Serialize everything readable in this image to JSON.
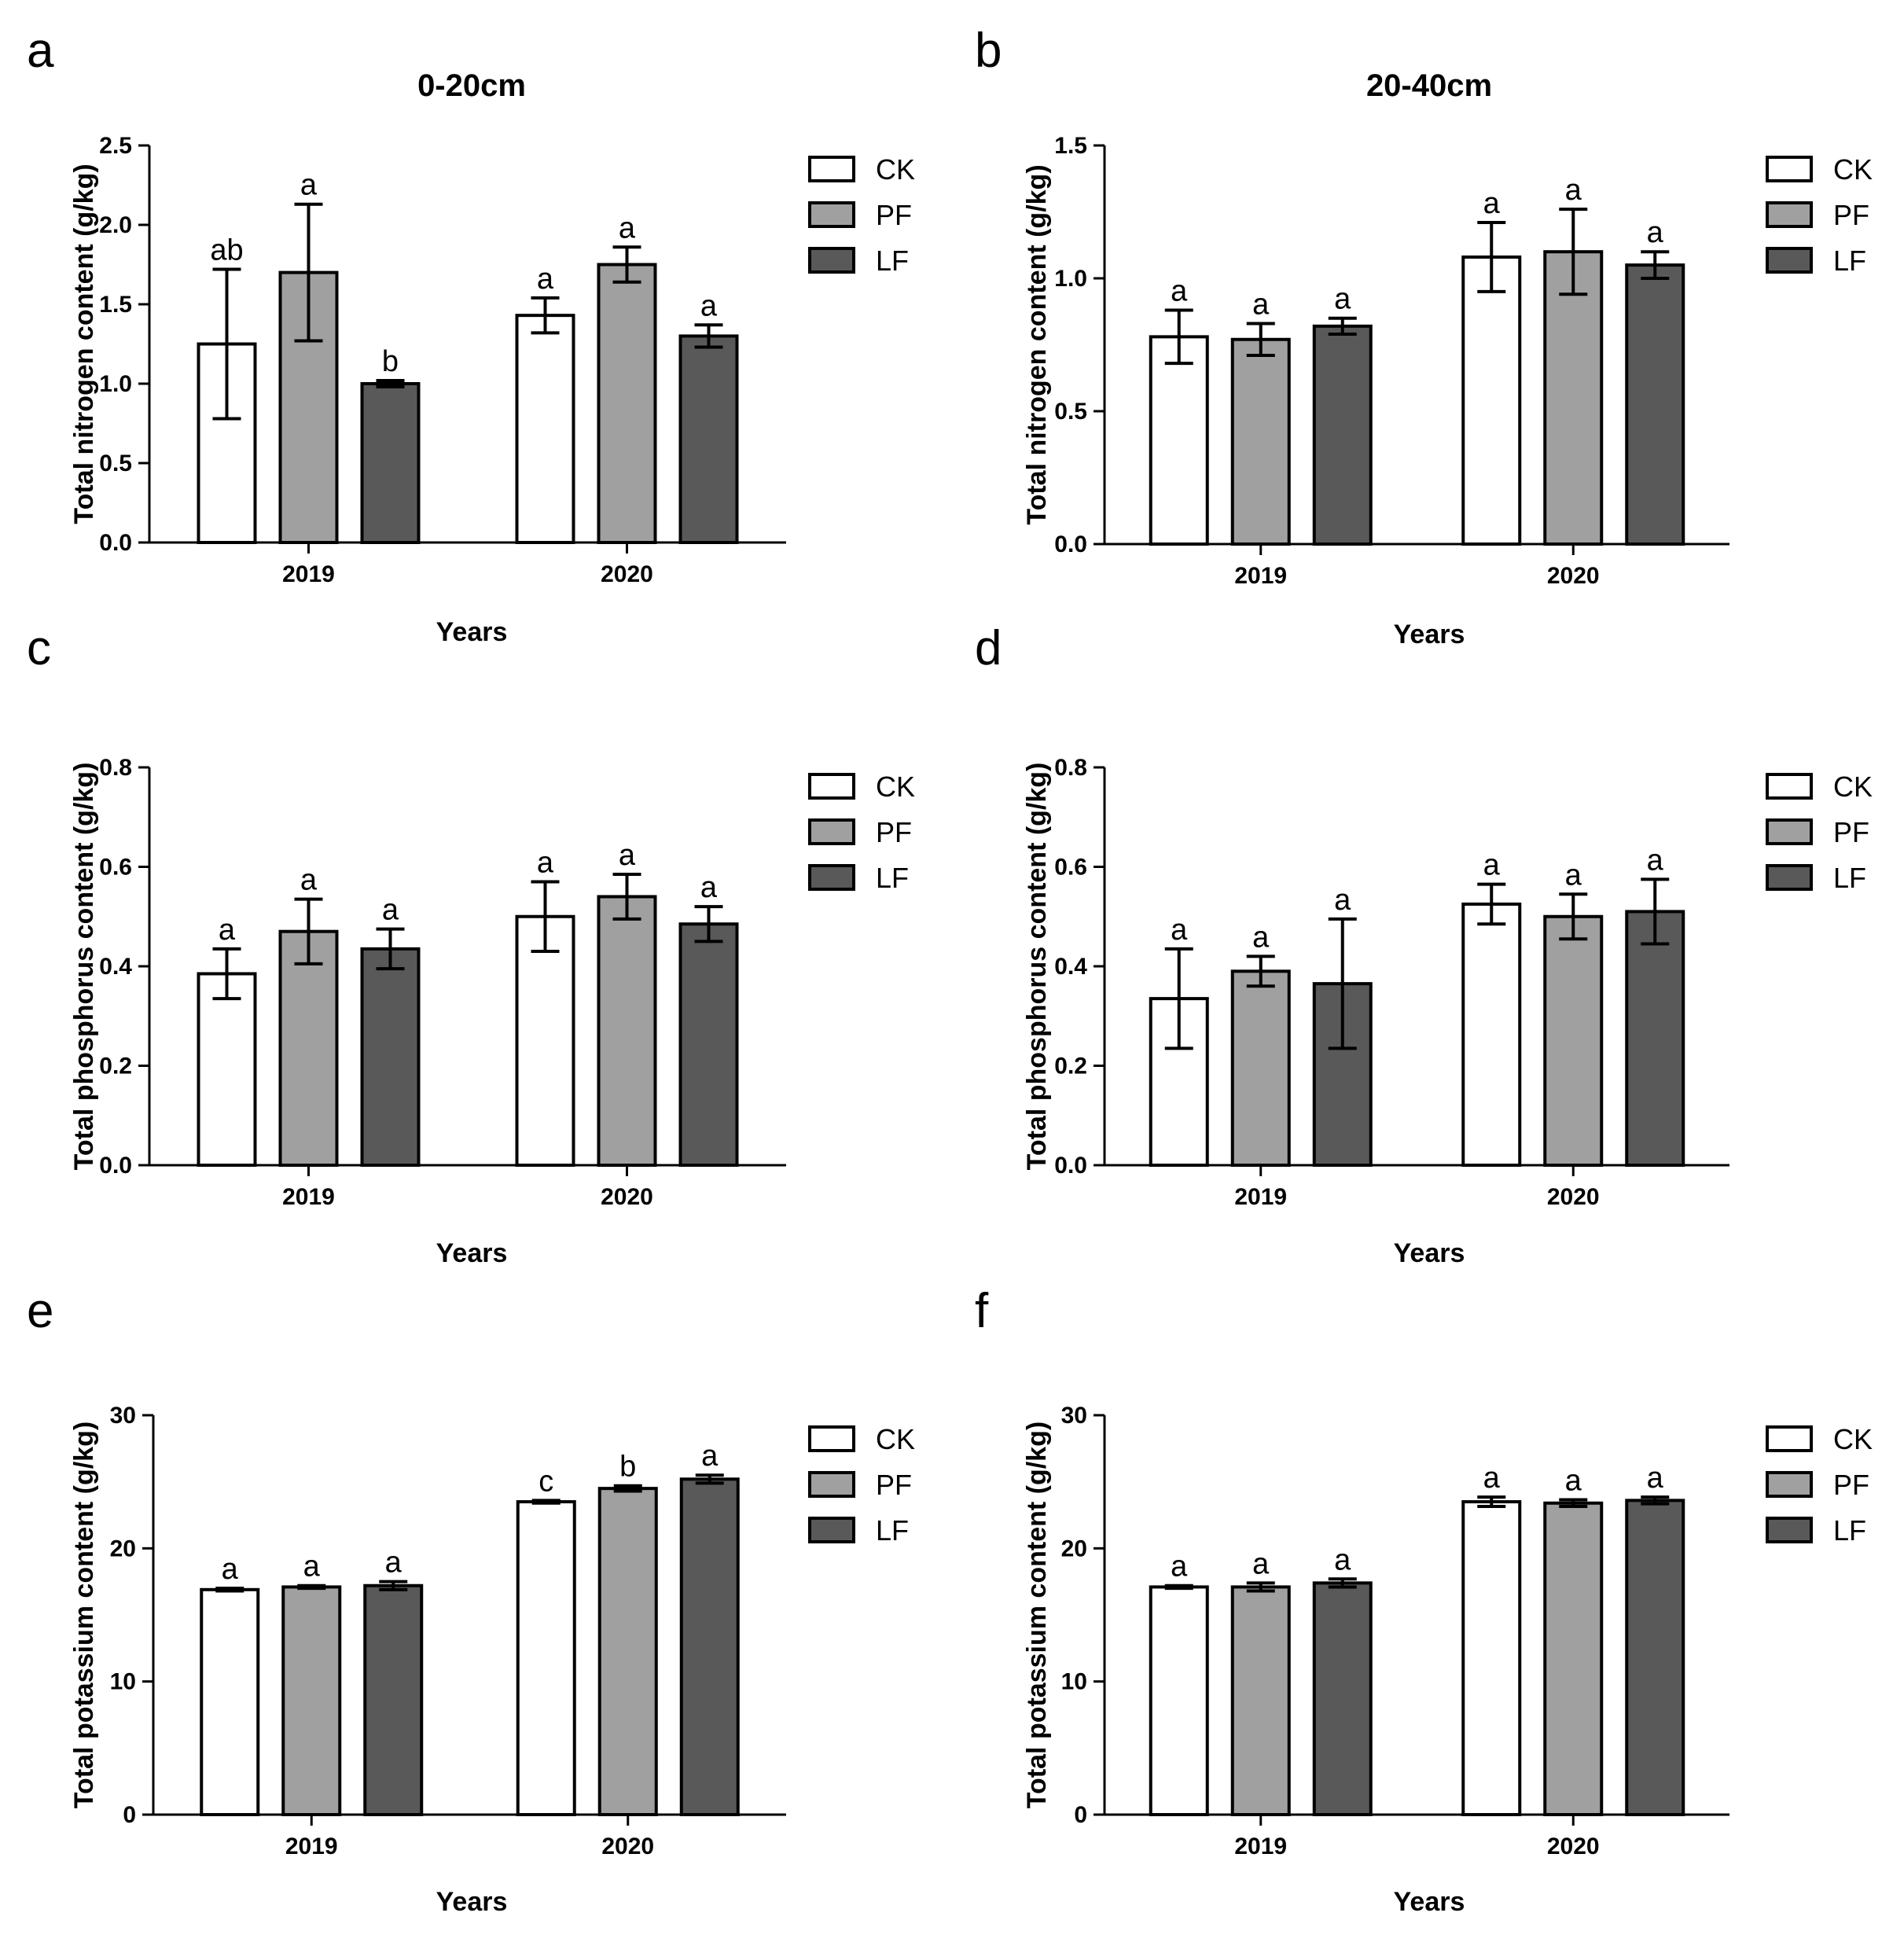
{
  "legend": [
    "CK",
    "PF",
    "LF"
  ],
  "colors": {
    "CK": "#ffffff",
    "PF": "#a0a0a0",
    "LF": "#595959",
    "stroke": "#000000"
  },
  "chart_data": [
    {
      "panel": "a",
      "type": "bar",
      "title": "0-20cm",
      "xlabel": "Years",
      "ylabel": "Total nitrogen content (g/kg)",
      "ylim": [
        0,
        2.5
      ],
      "yticks": [
        "0.0",
        "0.5",
        "1.0",
        "1.5",
        "2.0",
        "2.5"
      ],
      "categories": [
        "2019",
        "2020"
      ],
      "series": [
        {
          "name": "CK",
          "values": [
            1.25,
            1.43
          ],
          "errors": [
            0.47,
            0.11
          ],
          "letters": [
            "ab",
            "a"
          ]
        },
        {
          "name": "PF",
          "values": [
            1.7,
            1.75
          ],
          "errors": [
            0.43,
            0.11
          ],
          "letters": [
            "a",
            "a"
          ]
        },
        {
          "name": "LF",
          "values": [
            1.0,
            1.3
          ],
          "errors": [
            0.02,
            0.07
          ],
          "letters": [
            "b",
            "a"
          ]
        }
      ]
    },
    {
      "panel": "b",
      "type": "bar",
      "title": "20-40cm",
      "xlabel": "Years",
      "ylabel": "Total nitrogen content (g/kg)",
      "ylim": [
        0,
        1.5
      ],
      "yticks": [
        "0.0",
        "0.5",
        "1.0",
        "1.5"
      ],
      "categories": [
        "2019",
        "2020"
      ],
      "series": [
        {
          "name": "CK",
          "values": [
            0.78,
            1.08
          ],
          "errors": [
            0.1,
            0.13
          ],
          "letters": [
            "a",
            "a"
          ]
        },
        {
          "name": "PF",
          "values": [
            0.77,
            1.1
          ],
          "errors": [
            0.06,
            0.16
          ],
          "letters": [
            "a",
            "a"
          ]
        },
        {
          "name": "LF",
          "values": [
            0.82,
            1.05
          ],
          "errors": [
            0.03,
            0.05
          ],
          "letters": [
            "a",
            "a"
          ]
        }
      ]
    },
    {
      "panel": "c",
      "type": "bar",
      "title": "",
      "xlabel": "Years",
      "ylabel": "Total phosphorus content (g/kg)",
      "ylim": [
        0,
        0.8
      ],
      "yticks": [
        "0.0",
        "0.2",
        "0.4",
        "0.6",
        "0.8"
      ],
      "categories": [
        "2019",
        "2020"
      ],
      "series": [
        {
          "name": "CK",
          "values": [
            0.385,
            0.5
          ],
          "errors": [
            0.05,
            0.07
          ],
          "letters": [
            "a",
            "a"
          ]
        },
        {
          "name": "PF",
          "values": [
            0.47,
            0.54
          ],
          "errors": [
            0.065,
            0.045
          ],
          "letters": [
            "a",
            "a"
          ]
        },
        {
          "name": "LF",
          "values": [
            0.435,
            0.485
          ],
          "errors": [
            0.04,
            0.035
          ],
          "letters": [
            "a",
            "a"
          ]
        }
      ]
    },
    {
      "panel": "d",
      "type": "bar",
      "title": "",
      "xlabel": "Years",
      "ylabel": "Total phosphorus content (g/kg)",
      "ylim": [
        0,
        0.8
      ],
      "yticks": [
        "0.0",
        "0.2",
        "0.4",
        "0.6",
        "0.8"
      ],
      "categories": [
        "2019",
        "2020"
      ],
      "series": [
        {
          "name": "CK",
          "values": [
            0.335,
            0.525
          ],
          "errors": [
            0.1,
            0.04
          ],
          "letters": [
            "a",
            "a"
          ]
        },
        {
          "name": "PF",
          "values": [
            0.39,
            0.5
          ],
          "errors": [
            0.03,
            0.045
          ],
          "letters": [
            "a",
            "a"
          ]
        },
        {
          "name": "LF",
          "values": [
            0.365,
            0.51
          ],
          "errors": [
            0.13,
            0.065
          ],
          "letters": [
            "a",
            "a"
          ]
        }
      ]
    },
    {
      "panel": "e",
      "type": "bar",
      "title": "",
      "xlabel": "Years",
      "ylabel": "Total potassium content (g/kg)",
      "ylim": [
        0,
        30
      ],
      "yticks": [
        "0",
        "10",
        "20",
        "30"
      ],
      "categories": [
        "2019",
        "2020"
      ],
      "series": [
        {
          "name": "CK",
          "values": [
            16.9,
            23.5
          ],
          "errors": [
            0.1,
            0.1
          ],
          "letters": [
            "a",
            "c"
          ]
        },
        {
          "name": "PF",
          "values": [
            17.1,
            24.5
          ],
          "errors": [
            0.1,
            0.2
          ],
          "letters": [
            "a",
            "b"
          ]
        },
        {
          "name": "LF",
          "values": [
            17.2,
            25.2
          ],
          "errors": [
            0.3,
            0.3
          ],
          "letters": [
            "a",
            "a"
          ]
        }
      ]
    },
    {
      "panel": "f",
      "type": "bar",
      "title": "",
      "xlabel": "Years",
      "ylabel": "Total potassium content (g/kg)",
      "ylim": [
        0,
        30
      ],
      "yticks": [
        "0",
        "10",
        "20",
        "30"
      ],
      "categories": [
        "2019",
        "2020"
      ],
      "series": [
        {
          "name": "CK",
          "values": [
            17.1,
            23.5
          ],
          "errors": [
            0.1,
            0.35
          ],
          "letters": [
            "a",
            "a"
          ]
        },
        {
          "name": "PF",
          "values": [
            17.1,
            23.4
          ],
          "errors": [
            0.3,
            0.25
          ],
          "letters": [
            "a",
            "a"
          ]
        },
        {
          "name": "LF",
          "values": [
            17.4,
            23.6
          ],
          "errors": [
            0.3,
            0.25
          ],
          "letters": [
            "a",
            "a"
          ]
        }
      ]
    }
  ]
}
